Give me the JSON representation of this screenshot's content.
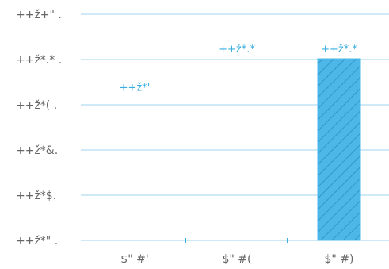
{
  "chart_data": {
    "type": "bar",
    "title": "",
    "xlabel": "",
    "ylabel": "",
    "categories": [
      "$\" #'",
      "$\" #(",
      "$\" #)"
    ],
    "values": [
      12.66,
      16.07,
      16.07
    ],
    "data_labels": [
      "++ž*'",
      "++ž*.*",
      "++ž*.*"
    ],
    "y_ticks": [
      {
        "value": 0,
        "label": "++ž*\" ."
      },
      {
        "value": 4,
        "label": "++ž*$."
      },
      {
        "value": 8,
        "label": "++ž*&."
      },
      {
        "value": 12,
        "label": "++ž*( ."
      },
      {
        "value": 16,
        "label": "++ž*.* ."
      },
      {
        "value": 20,
        "label": "++ž+\" ."
      }
    ],
    "ylim": [
      0,
      20
    ],
    "grid": true,
    "legend": "none",
    "colors": {
      "bar_fill": "#4db8e8",
      "bar_hatch": "#2a8fc4",
      "grid": "#9fd6ee",
      "label_accent": "#3aaee0",
      "axis_text": "#666666"
    }
  }
}
